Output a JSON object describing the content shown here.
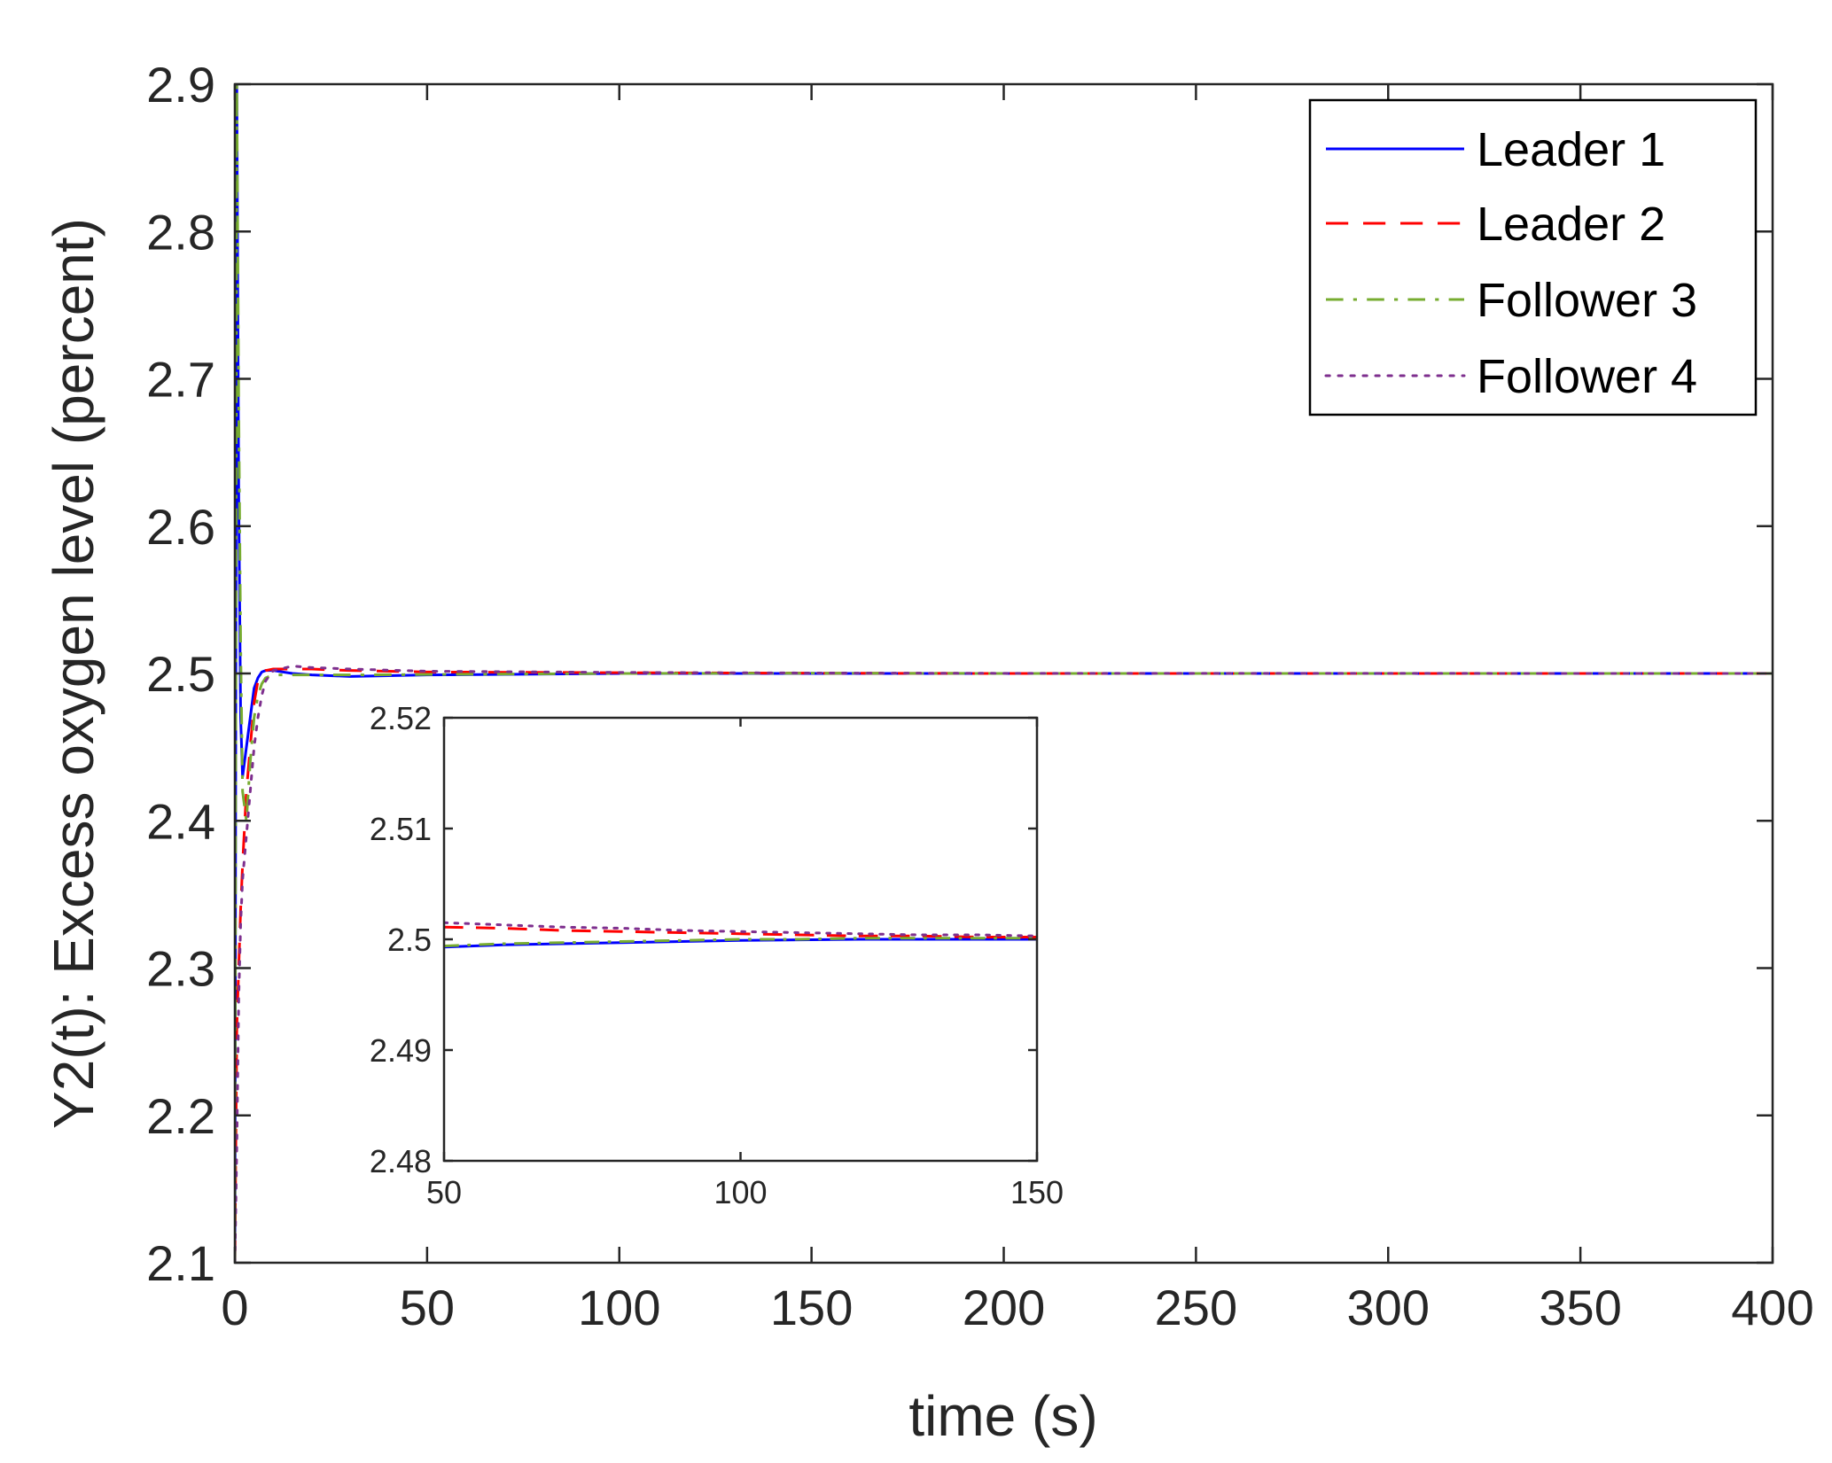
{
  "chart_data": [
    {
      "type": "line",
      "title": "",
      "xlabel": "time (s)",
      "ylabel": "Y2(t): Excess oxygen level (percent)",
      "xlim": [
        0,
        400
      ],
      "ylim": [
        2.1,
        2.9
      ],
      "xticks": [
        "0",
        "50",
        "100",
        "150",
        "200",
        "250",
        "300",
        "350",
        "400"
      ],
      "yticks": [
        "2.1",
        "2.2",
        "2.3",
        "2.4",
        "2.5",
        "2.6",
        "2.7",
        "2.8",
        "2.9"
      ],
      "grid": false,
      "legend_position": "top-right",
      "series": [
        {
          "name": "Leader 1",
          "color": "#0000ff",
          "style": "solid",
          "x": [
            0,
            0.5,
            1,
            1.5,
            2,
            3,
            4,
            5,
            6,
            7,
            8,
            10,
            15,
            20,
            30,
            50,
            100,
            150,
            200,
            400
          ],
          "y": [
            2.1,
            2.9,
            2.62,
            2.47,
            2.43,
            2.45,
            2.47,
            2.49,
            2.497,
            2.501,
            2.502,
            2.502,
            2.5,
            2.499,
            2.498,
            2.499,
            2.5,
            2.5,
            2.5,
            2.5
          ]
        },
        {
          "name": "Leader 2",
          "color": "#ff0000",
          "style": "dashed",
          "x": [
            0,
            0.5,
            1,
            1.5,
            2,
            3,
            4,
            5,
            6,
            7,
            8,
            10,
            15,
            20,
            30,
            50,
            100,
            150,
            200,
            400
          ],
          "y": [
            2.1,
            2.26,
            2.3,
            2.34,
            2.37,
            2.42,
            2.45,
            2.48,
            2.495,
            2.5,
            2.502,
            2.503,
            2.503,
            2.503,
            2.502,
            2.501,
            2.5005,
            2.5002,
            2.5,
            2.5
          ]
        },
        {
          "name": "Follower 3",
          "color": "#77ac30",
          "style": "dashdot",
          "x": [
            0,
            0.5,
            1,
            1.5,
            2,
            3,
            4,
            5,
            6,
            7,
            8,
            10,
            15,
            20,
            30,
            50,
            100,
            150,
            200,
            400
          ],
          "y": [
            2.1,
            2.9,
            2.68,
            2.52,
            2.42,
            2.4,
            2.44,
            2.47,
            2.485,
            2.493,
            2.497,
            2.499,
            2.499,
            2.499,
            2.499,
            2.4993,
            2.5,
            2.5002,
            2.5,
            2.5
          ]
        },
        {
          "name": "Follower 4",
          "color": "#7e2f8e",
          "style": "dotted",
          "x": [
            0,
            0.5,
            1,
            1.5,
            2,
            3,
            4,
            5,
            6,
            7,
            8,
            10,
            15,
            20,
            30,
            50,
            100,
            150,
            200,
            400
          ],
          "y": [
            2.1,
            2.18,
            2.28,
            2.33,
            2.36,
            2.39,
            2.42,
            2.45,
            2.47,
            2.485,
            2.495,
            2.502,
            2.505,
            2.504,
            2.503,
            2.5015,
            2.5007,
            2.5003,
            2.5001,
            2.5
          ]
        }
      ]
    },
    {
      "type": "line",
      "title": "",
      "xlabel": "",
      "ylabel": "",
      "xlim": [
        50,
        150
      ],
      "ylim": [
        2.48,
        2.52
      ],
      "xticks": [
        "50",
        "100",
        "150"
      ],
      "yticks": [
        "2.48",
        "2.49",
        "2.5",
        "2.51",
        "2.52"
      ],
      "grid": false,
      "series": [
        {
          "color": "#0000ff",
          "style": "solid",
          "x": [
            50,
            60,
            70,
            80,
            90,
            100,
            110,
            120,
            130,
            140,
            150
          ],
          "y": [
            2.4993,
            2.4995,
            2.4996,
            2.4997,
            2.4998,
            2.4999,
            2.49995,
            2.5,
            2.5,
            2.5,
            2.5
          ]
        },
        {
          "color": "#ff0000",
          "style": "dashed",
          "x": [
            50,
            60,
            70,
            80,
            90,
            100,
            110,
            120,
            130,
            140,
            150
          ],
          "y": [
            2.5011,
            2.501,
            2.5008,
            2.5007,
            2.5006,
            2.5005,
            2.5004,
            2.5003,
            2.5003,
            2.5002,
            2.5002
          ]
        },
        {
          "color": "#77ac30",
          "style": "dashdot",
          "x": [
            50,
            60,
            70,
            80,
            90,
            100,
            110,
            120,
            130,
            140,
            150
          ],
          "y": [
            2.4994,
            2.4996,
            2.4997,
            2.4998,
            2.4999,
            2.5,
            2.5,
            2.5001,
            2.5001,
            2.5001,
            2.5001
          ]
        },
        {
          "color": "#7e2f8e",
          "style": "dotted",
          "x": [
            50,
            60,
            70,
            80,
            90,
            100,
            110,
            120,
            130,
            140,
            150
          ],
          "y": [
            2.5015,
            2.5013,
            2.5011,
            2.501,
            2.5008,
            2.5007,
            2.5006,
            2.5005,
            2.5004,
            2.5004,
            2.5003
          ]
        }
      ]
    }
  ]
}
